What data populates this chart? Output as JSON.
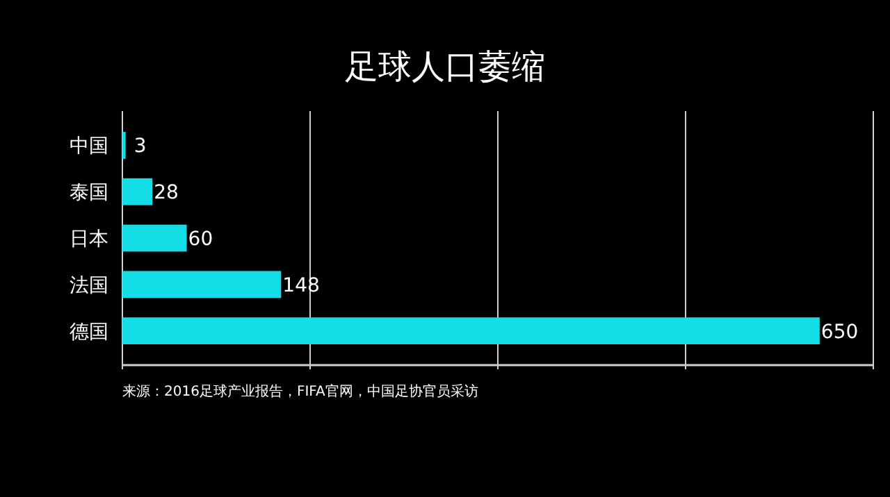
{
  "chart_data": {
    "type": "bar",
    "orientation": "horizontal",
    "title": "足球人口萎缩",
    "categories": [
      "中国",
      "泰国",
      "日本",
      "法国",
      "德国"
    ],
    "values": [
      3,
      28,
      60,
      148,
      650
    ],
    "color": "#14dde6",
    "xlim": [
      0,
      700
    ],
    "xticks": [
      {
        "value": 0,
        "label": null
      },
      {
        "value": 175,
        "label": null
      },
      {
        "value": 350,
        "label": null
      },
      {
        "value": 525,
        "label": null
      },
      {
        "value": 700,
        "label": null
      }
    ],
    "grid": "x",
    "tick_labels": "y",
    "data_labels": true,
    "annotations": [
      "来源：2016足球产业报告，FIFA官网，中国足协官员采访"
    ]
  }
}
